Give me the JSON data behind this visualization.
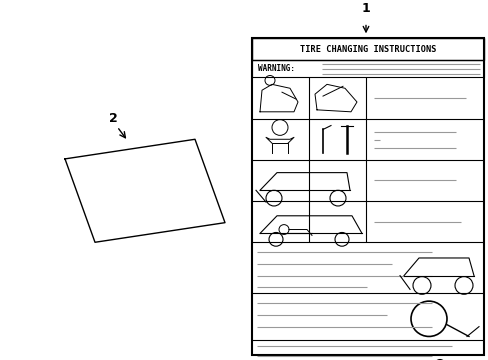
{
  "bg_color": "#ffffff",
  "lc": "#000000",
  "gc": "#999999",
  "title": "TIRE CHANGING INSTRUCTIONS",
  "warning": "WARNING:",
  "label1": "1",
  "label2": "2",
  "fig_w": 4.89,
  "fig_h": 3.6,
  "dpi": 100
}
